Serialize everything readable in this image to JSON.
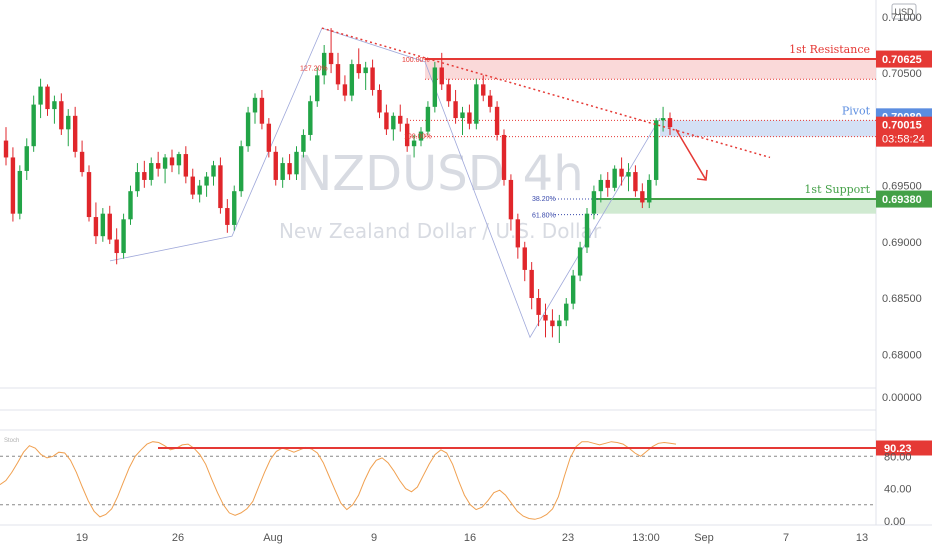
{
  "chart_data": {
    "type": "candlestick",
    "watermark": {
      "symbol": "NZDUSD",
      "interval": "4h",
      "description": "New Zealand Dollar / U.S. Dollar"
    },
    "currency_label": "USD",
    "price_axis": {
      "ylim": [
        0.677,
        0.7115
      ],
      "ticks": [
        "0.71000",
        "0.70500",
        "0.69500",
        "0.69000",
        "0.68500",
        "0.68000"
      ],
      "tick_values": [
        0.71,
        0.705,
        0.695,
        0.69,
        0.685,
        0.68
      ]
    },
    "x_axis": {
      "labels": [
        "19",
        "26",
        "Aug",
        "9",
        "16",
        "23",
        "13:00",
        "Sep",
        "7",
        "13"
      ]
    },
    "levels": {
      "resistance": {
        "label": "1st Resistance",
        "value": "0.70625",
        "price": 0.70625,
        "zone_bottom": 0.70445,
        "color": "#e53935"
      },
      "pivot": {
        "label": "Pivot",
        "value": "0.70080",
        "price": 0.7008,
        "zone_bottom": 0.69935,
        "color": "#5b8de0"
      },
      "support": {
        "label": "1st Support",
        "value": "0.69380",
        "price": 0.6938,
        "zone_bottom": 0.6925,
        "color": "#43a047"
      }
    },
    "current_price": {
      "value": "0.70015",
      "countdown": "03:58:24",
      "color": "#e53935"
    },
    "fib_labels": {
      "upper_100": "100.00%",
      "upper_127": "127.20%",
      "pivot_100": "100.00%",
      "support_382": "38.20%",
      "support_618": "61.80%"
    },
    "upper_pane_ticks": [
      "0.00000"
    ],
    "oscillator": {
      "name": "Stoch",
      "ylim": [
        -5,
        110
      ],
      "ticks": [
        "80.00",
        "40.00",
        "0.00"
      ],
      "tick_values": [
        80,
        40,
        0
      ],
      "upper_band": 80,
      "lower_band": 20,
      "resistance_level": {
        "value": "90.23",
        "level": 90.23
      },
      "values": [
        45,
        50,
        60,
        72,
        85,
        93,
        90,
        82,
        78,
        80,
        85,
        84,
        75,
        60,
        42,
        25,
        12,
        5,
        8,
        15,
        30,
        48,
        66,
        80,
        88,
        95,
        98,
        97,
        93,
        88,
        90,
        94,
        95,
        90,
        82,
        70,
        52,
        35,
        20,
        10,
        7,
        10,
        15,
        24,
        42,
        60,
        76,
        86,
        90,
        88,
        85,
        88,
        91,
        89,
        84,
        72,
        55,
        38,
        22,
        14,
        20,
        32,
        50,
        65,
        75,
        78,
        72,
        62,
        50,
        40,
        36,
        42,
        56,
        70,
        82,
        88,
        84,
        70,
        50,
        32,
        20,
        14,
        17,
        25,
        35,
        38,
        32,
        22,
        12,
        6,
        3,
        2,
        4,
        8,
        15,
        30,
        55,
        78,
        92,
        98,
        98,
        96,
        94,
        96,
        98,
        97,
        95,
        90,
        84,
        80,
        86,
        92,
        96,
        97,
        96,
        95
      ]
    },
    "candles": [
      [
        0.699,
        0.7002,
        0.6968,
        0.6975
      ],
      [
        0.6975,
        0.6984,
        0.6918,
        0.6925
      ],
      [
        0.6925,
        0.6968,
        0.692,
        0.6963
      ],
      [
        0.6963,
        0.6992,
        0.6955,
        0.6985
      ],
      [
        0.6985,
        0.703,
        0.698,
        0.7022
      ],
      [
        0.7022,
        0.7045,
        0.701,
        0.7038
      ],
      [
        0.7038,
        0.704,
        0.7012,
        0.7018
      ],
      [
        0.7018,
        0.703,
        0.7005,
        0.7025
      ],
      [
        0.7025,
        0.7032,
        0.6995,
        0.7
      ],
      [
        0.7,
        0.7018,
        0.6985,
        0.7012
      ],
      [
        0.7012,
        0.702,
        0.6975,
        0.698
      ],
      [
        0.698,
        0.699,
        0.6958,
        0.6962
      ],
      [
        0.6962,
        0.6968,
        0.6918,
        0.6922
      ],
      [
        0.6922,
        0.6935,
        0.6898,
        0.6905
      ],
      [
        0.6905,
        0.693,
        0.69,
        0.6925
      ],
      [
        0.6925,
        0.6932,
        0.6898,
        0.6902
      ],
      [
        0.6902,
        0.6912,
        0.688,
        0.689
      ],
      [
        0.689,
        0.6925,
        0.6885,
        0.692
      ],
      [
        0.692,
        0.695,
        0.6915,
        0.6945
      ],
      [
        0.6945,
        0.697,
        0.694,
        0.6962
      ],
      [
        0.6962,
        0.6972,
        0.6948,
        0.6955
      ],
      [
        0.6955,
        0.6975,
        0.695,
        0.697
      ],
      [
        0.697,
        0.698,
        0.6958,
        0.6965
      ],
      [
        0.6965,
        0.6978,
        0.6952,
        0.6975
      ],
      [
        0.6975,
        0.6982,
        0.6962,
        0.6968
      ],
      [
        0.6968,
        0.698,
        0.696,
        0.6978
      ],
      [
        0.6978,
        0.6985,
        0.6952,
        0.6958
      ],
      [
        0.6958,
        0.6965,
        0.6938,
        0.6942
      ],
      [
        0.6942,
        0.6955,
        0.6935,
        0.695
      ],
      [
        0.695,
        0.6962,
        0.694,
        0.6958
      ],
      [
        0.6958,
        0.6972,
        0.695,
        0.6968
      ],
      [
        0.6968,
        0.6975,
        0.6925,
        0.693
      ],
      [
        0.693,
        0.6938,
        0.6908,
        0.6915
      ],
      [
        0.6915,
        0.695,
        0.691,
        0.6945
      ],
      [
        0.6945,
        0.699,
        0.694,
        0.6985
      ],
      [
        0.6985,
        0.702,
        0.698,
        0.7015
      ],
      [
        0.7015,
        0.7032,
        0.7005,
        0.7028
      ],
      [
        0.7028,
        0.7035,
        0.7,
        0.7005
      ],
      [
        0.7005,
        0.701,
        0.6975,
        0.698
      ],
      [
        0.698,
        0.6985,
        0.695,
        0.6955
      ],
      [
        0.6955,
        0.6975,
        0.6948,
        0.697
      ],
      [
        0.697,
        0.6978,
        0.6955,
        0.696
      ],
      [
        0.696,
        0.6985,
        0.6955,
        0.698
      ],
      [
        0.698,
        0.7,
        0.6975,
        0.6995
      ],
      [
        0.6995,
        0.703,
        0.699,
        0.7025
      ],
      [
        0.7025,
        0.7055,
        0.702,
        0.7048
      ],
      [
        0.7048,
        0.7075,
        0.704,
        0.7068
      ],
      [
        0.7068,
        0.709,
        0.705,
        0.7058
      ],
      [
        0.7058,
        0.7068,
        0.7035,
        0.704
      ],
      [
        0.704,
        0.7048,
        0.7025,
        0.703
      ],
      [
        0.703,
        0.7062,
        0.7025,
        0.7058
      ],
      [
        0.7058,
        0.7072,
        0.7045,
        0.705
      ],
      [
        0.705,
        0.706,
        0.7035,
        0.7055
      ],
      [
        0.7055,
        0.7062,
        0.703,
        0.7035
      ],
      [
        0.7035,
        0.704,
        0.701,
        0.7015
      ],
      [
        0.7015,
        0.7022,
        0.6995,
        0.7
      ],
      [
        0.7,
        0.7015,
        0.699,
        0.7012
      ],
      [
        0.7012,
        0.7022,
        0.6998,
        0.7005
      ],
      [
        0.7005,
        0.701,
        0.698,
        0.6985
      ],
      [
        0.6985,
        0.6995,
        0.6975,
        0.699
      ],
      [
        0.699,
        0.7002,
        0.6985,
        0.6998
      ],
      [
        0.6998,
        0.7025,
        0.6995,
        0.702
      ],
      [
        0.702,
        0.706,
        0.7015,
        0.7055
      ],
      [
        0.7055,
        0.7068,
        0.7035,
        0.704
      ],
      [
        0.704,
        0.7045,
        0.702,
        0.7025
      ],
      [
        0.7025,
        0.7035,
        0.7005,
        0.701
      ],
      [
        0.701,
        0.702,
        0.6995,
        0.7015
      ],
      [
        0.7015,
        0.7022,
        0.7,
        0.7005
      ],
      [
        0.7005,
        0.7045,
        0.7,
        0.704
      ],
      [
        0.704,
        0.7048,
        0.7025,
        0.703
      ],
      [
        0.703,
        0.7035,
        0.7015,
        0.702
      ],
      [
        0.702,
        0.7025,
        0.699,
        0.6995
      ],
      [
        0.6995,
        0.7,
        0.695,
        0.6955
      ],
      [
        0.6955,
        0.696,
        0.691,
        0.692
      ],
      [
        0.692,
        0.6925,
        0.6885,
        0.6895
      ],
      [
        0.6895,
        0.69,
        0.6865,
        0.6875
      ],
      [
        0.6875,
        0.6882,
        0.684,
        0.685
      ],
      [
        0.685,
        0.6858,
        0.6825,
        0.6835
      ],
      [
        0.6835,
        0.6845,
        0.6815,
        0.683
      ],
      [
        0.683,
        0.684,
        0.6815,
        0.6825
      ],
      [
        0.6825,
        0.6835,
        0.681,
        0.683
      ],
      [
        0.683,
        0.685,
        0.6825,
        0.6845
      ],
      [
        0.6845,
        0.6875,
        0.684,
        0.687
      ],
      [
        0.687,
        0.69,
        0.6865,
        0.6895
      ],
      [
        0.6895,
        0.693,
        0.689,
        0.6925
      ],
      [
        0.6925,
        0.695,
        0.692,
        0.6945
      ],
      [
        0.6945,
        0.696,
        0.6935,
        0.6955
      ],
      [
        0.6955,
        0.6962,
        0.694,
        0.6948
      ],
      [
        0.6948,
        0.6968,
        0.6945,
        0.6965
      ],
      [
        0.6965,
        0.6975,
        0.695,
        0.6958
      ],
      [
        0.6958,
        0.697,
        0.6945,
        0.6962
      ],
      [
        0.6962,
        0.6968,
        0.694,
        0.6945
      ],
      [
        0.6945,
        0.6952,
        0.693,
        0.6935
      ],
      [
        0.6935,
        0.696,
        0.693,
        0.6955
      ],
      [
        0.6955,
        0.701,
        0.695,
        0.7008
      ],
      [
        0.7008,
        0.702,
        0.6998,
        0.701
      ],
      [
        0.701,
        0.7015,
        0.6995,
        0.7002
      ]
    ]
  }
}
